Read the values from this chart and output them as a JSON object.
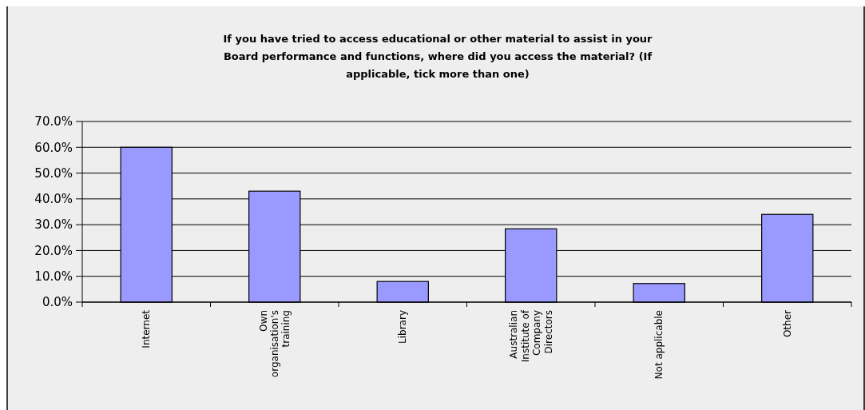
{
  "chart_data": {
    "type": "bar",
    "title": "If you have tried to access educational or other material to assist in your Board performance and functions, where did you access the material? (If applicable, tick more than one)",
    "categories": [
      "Internet",
      "Own organisation's training",
      "Library",
      "Australian Institute of Company Directors",
      "Not applicable",
      "Other"
    ],
    "values": [
      60.0,
      43.0,
      8.0,
      28.4,
      7.2,
      34.0
    ],
    "color": "#9999ff",
    "ylim": [
      0,
      70
    ],
    "yticks": [
      {
        "value": 0,
        "label": "0.0%"
      },
      {
        "value": 10,
        "label": "10.0%"
      },
      {
        "value": 20,
        "label": "20.0%"
      },
      {
        "value": 30,
        "label": "30.0%"
      },
      {
        "value": 40,
        "label": "40.0%"
      },
      {
        "value": 50,
        "label": "50.0%"
      },
      {
        "value": 60,
        "label": "60.0%"
      },
      {
        "value": 70,
        "label": "70.0%"
      }
    ],
    "grid": "y"
  }
}
